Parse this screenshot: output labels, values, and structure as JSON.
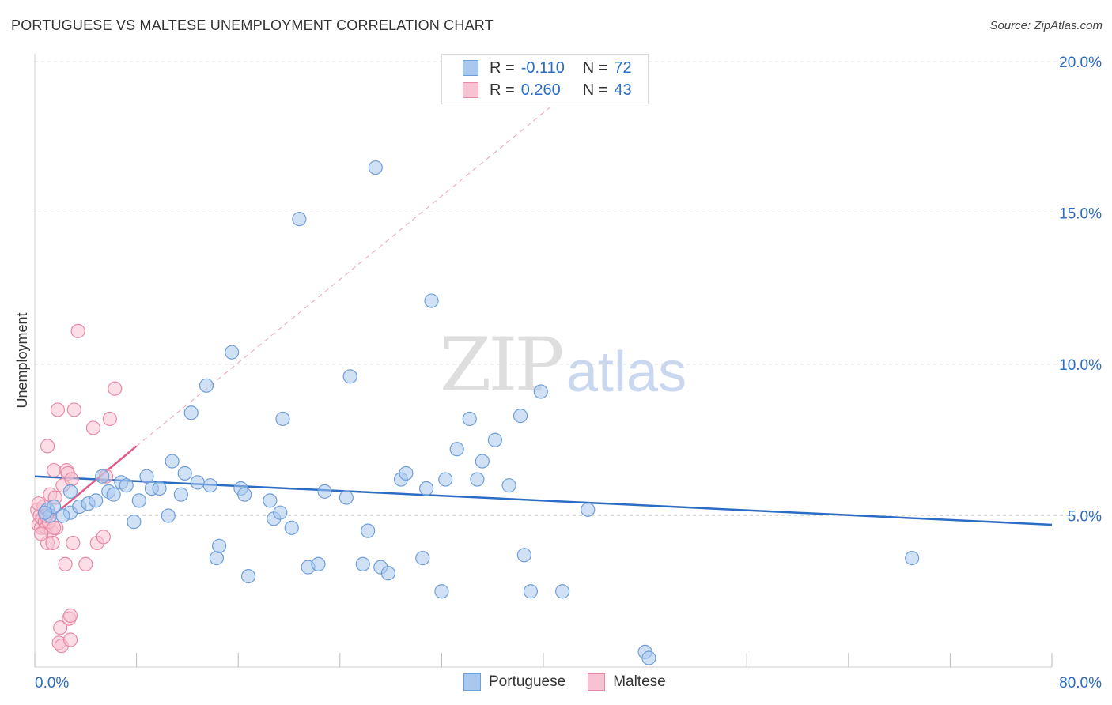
{
  "title": "PORTUGUESE VS MALTESE UNEMPLOYMENT CORRELATION CHART",
  "source": "Source: ZipAtlas.com",
  "watermark": {
    "part1": "ZIP",
    "part2": "atlas"
  },
  "legend": {
    "rows": [
      {
        "r_label": "R =",
        "r_value": "-0.110",
        "n_label": "N =",
        "n_value": "72",
        "color": "#a9c8ef",
        "border": "#6f9fd8"
      },
      {
        "r_label": "R =",
        "r_value": "0.260",
        "n_label": "N =",
        "n_value": "43",
        "color": "#f7c3d2",
        "border": "#e88aa7"
      }
    ],
    "series_names": [
      "Portuguese",
      "Maltese"
    ]
  },
  "colors": {
    "blue": "#2b6cc4",
    "blue_fill": "#a9c8ef",
    "blue_stroke": "#6f9fd8",
    "pink": "#e05a8a",
    "pink_fill": "#f7c3d2",
    "pink_stroke": "#e88aa7"
  },
  "chart_data": {
    "type": "scatter",
    "ylabel": "Unemployment",
    "xlim": [
      0,
      80
    ],
    "ylim": [
      0,
      20
    ],
    "x_tick_labels": [
      "0.0%",
      "80.0%"
    ],
    "y_ticks": [
      5,
      10,
      15,
      20
    ],
    "y_tick_labels": [
      "5.0%",
      "10.0%",
      "15.0%",
      "20.0%"
    ],
    "series": [
      {
        "name": "Portuguese",
        "points": [
          [
            1,
            5.2
          ],
          [
            1.2,
            5.0
          ],
          [
            1.5,
            5.3
          ],
          [
            2.8,
            5.1
          ],
          [
            2.8,
            5.8
          ],
          [
            3.5,
            5.3
          ],
          [
            4.2,
            5.4
          ],
          [
            4.8,
            5.5
          ],
          [
            5.3,
            6.3
          ],
          [
            5.8,
            5.8
          ],
          [
            6.2,
            5.7
          ],
          [
            6.8,
            6.1
          ],
          [
            7.2,
            6.0
          ],
          [
            7.8,
            4.8
          ],
          [
            8.2,
            5.5
          ],
          [
            8.8,
            6.3
          ],
          [
            9.2,
            5.9
          ],
          [
            9.8,
            5.9
          ],
          [
            10.5,
            5.0
          ],
          [
            10.8,
            6.8
          ],
          [
            11.5,
            5.7
          ],
          [
            11.8,
            6.4
          ],
          [
            12.3,
            8.4
          ],
          [
            12.8,
            6.1
          ],
          [
            13.5,
            9.3
          ],
          [
            13.8,
            6.0
          ],
          [
            14.3,
            3.6
          ],
          [
            14.5,
            4.0
          ],
          [
            15.5,
            10.4
          ],
          [
            16.2,
            5.9
          ],
          [
            16.5,
            5.7
          ],
          [
            16.8,
            3.0
          ],
          [
            18.5,
            5.5
          ],
          [
            18.8,
            4.9
          ],
          [
            19.3,
            5.1
          ],
          [
            19.5,
            8.2
          ],
          [
            20.2,
            4.6
          ],
          [
            20.8,
            14.8
          ],
          [
            21.5,
            3.3
          ],
          [
            22.3,
            3.4
          ],
          [
            22.8,
            5.8
          ],
          [
            24.5,
            5.6
          ],
          [
            24.8,
            9.6
          ],
          [
            25.8,
            3.4
          ],
          [
            26.2,
            4.5
          ],
          [
            26.8,
            16.5
          ],
          [
            27.2,
            3.3
          ],
          [
            27.8,
            3.1
          ],
          [
            28.8,
            6.2
          ],
          [
            29.2,
            6.4
          ],
          [
            30.5,
            3.6
          ],
          [
            30.8,
            5.9
          ],
          [
            31.2,
            12.1
          ],
          [
            32.0,
            2.5
          ],
          [
            32.3,
            6.2
          ],
          [
            33.2,
            7.2
          ],
          [
            34.2,
            8.2
          ],
          [
            34.8,
            6.2
          ],
          [
            35.2,
            6.8
          ],
          [
            36.2,
            7.5
          ],
          [
            37.3,
            6.0
          ],
          [
            38.2,
            8.3
          ],
          [
            38.5,
            3.7
          ],
          [
            39.0,
            2.5
          ],
          [
            39.8,
            9.1
          ],
          [
            41.5,
            2.5
          ],
          [
            43.5,
            5.2
          ],
          [
            48.0,
            0.5
          ],
          [
            48.3,
            0.3
          ],
          [
            69.0,
            3.6
          ],
          [
            0.8,
            5.1
          ],
          [
            2.2,
            5.0
          ]
        ]
      },
      {
        "name": "Maltese",
        "points": [
          [
            0.2,
            5.2
          ],
          [
            0.3,
            4.7
          ],
          [
            0.4,
            5.0
          ],
          [
            0.5,
            4.6
          ],
          [
            0.6,
            4.9
          ],
          [
            0.7,
            5.3
          ],
          [
            0.8,
            4.8
          ],
          [
            0.9,
            4.6
          ],
          [
            1.0,
            7.3
          ],
          [
            1.0,
            4.1
          ],
          [
            1.2,
            5.7
          ],
          [
            1.3,
            4.5
          ],
          [
            1.4,
            4.1
          ],
          [
            1.5,
            6.5
          ],
          [
            1.6,
            5.6
          ],
          [
            1.7,
            4.6
          ],
          [
            1.8,
            8.5
          ],
          [
            1.9,
            0.8
          ],
          [
            2.0,
            1.3
          ],
          [
            2.1,
            0.7
          ],
          [
            2.2,
            6.0
          ],
          [
            2.4,
            3.4
          ],
          [
            2.5,
            6.5
          ],
          [
            2.6,
            6.4
          ],
          [
            2.7,
            1.6
          ],
          [
            2.8,
            1.7
          ],
          [
            2.8,
            0.9
          ],
          [
            2.9,
            6.2
          ],
          [
            3.0,
            4.1
          ],
          [
            3.1,
            8.5
          ],
          [
            3.4,
            11.1
          ],
          [
            4.0,
            3.4
          ],
          [
            4.6,
            7.9
          ],
          [
            4.9,
            4.1
          ],
          [
            5.4,
            4.3
          ],
          [
            5.6,
            6.3
          ],
          [
            5.9,
            8.2
          ],
          [
            6.3,
            9.2
          ],
          [
            0.3,
            5.4
          ],
          [
            0.5,
            4.4
          ],
          [
            1.1,
            4.8
          ],
          [
            1.5,
            4.6
          ],
          [
            0.9,
            5.0
          ]
        ]
      }
    ],
    "trend_lines": [
      {
        "series": "Portuguese",
        "x": [
          0,
          80
        ],
        "y": [
          6.3,
          4.7
        ],
        "style": "solid"
      },
      {
        "series": "Maltese",
        "x": [
          0,
          8
        ],
        "y": [
          4.5,
          7.3
        ],
        "style": "solid"
      },
      {
        "series": "Maltese",
        "x": [
          8,
          42
        ],
        "y": [
          7.3,
          19.0
        ],
        "style": "dashed"
      }
    ]
  }
}
